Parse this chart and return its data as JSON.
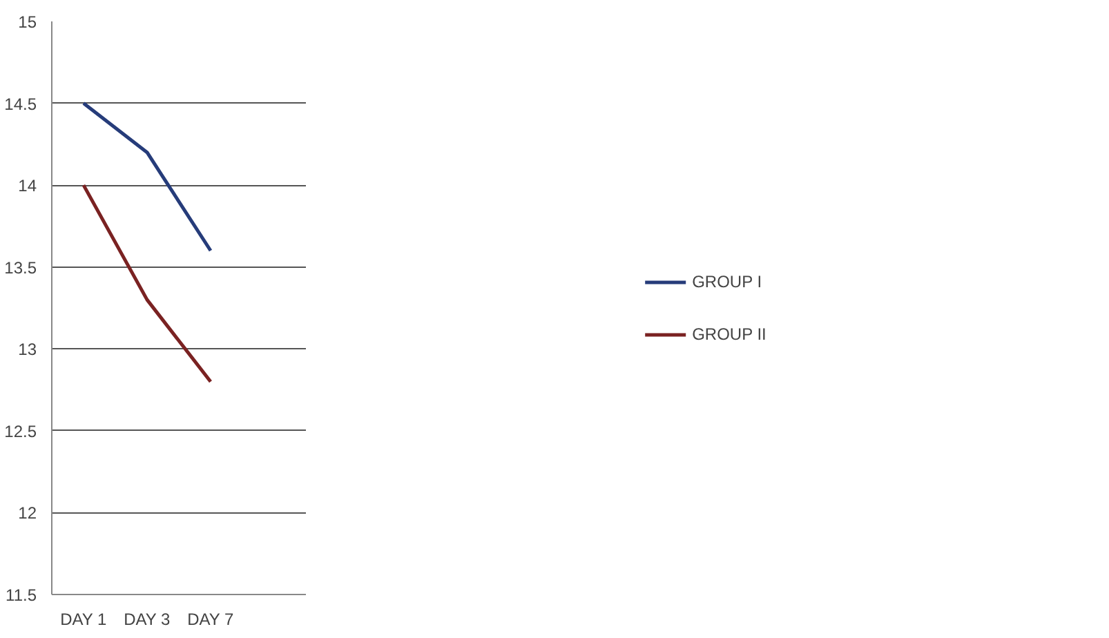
{
  "chart_data": {
    "type": "line",
    "categories": [
      "DAY 1",
      "DAY 3",
      "DAY 7",
      null
    ],
    "series": [
      {
        "name": "GROUP I",
        "color": "#263c7a",
        "values": [
          14.5,
          14.2,
          13.6,
          null
        ]
      },
      {
        "name": "GROUP II",
        "color": "#7a2222",
        "values": [
          14.0,
          13.3,
          12.8,
          null
        ]
      }
    ],
    "ylim": [
      11.5,
      15
    ],
    "yticks": [
      11.5,
      12,
      12.5,
      13,
      13.5,
      14,
      14.5,
      15
    ],
    "grid": "y",
    "legend": "right",
    "marker": "none",
    "line_style": "solid"
  }
}
